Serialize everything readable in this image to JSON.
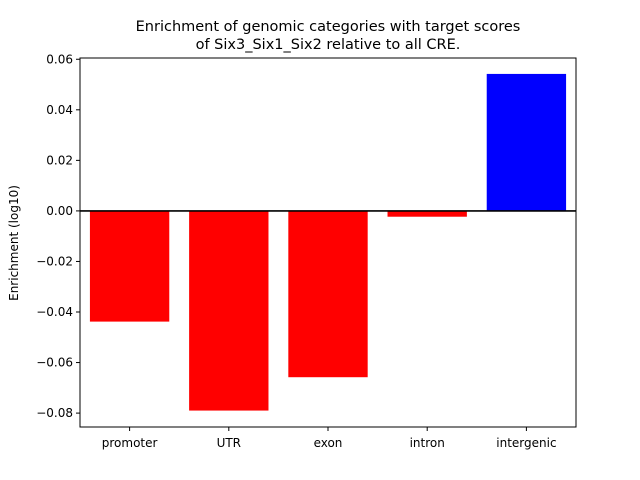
{
  "chart_data": {
    "type": "bar",
    "title_lines": [
      "Enrichment of genomic categories with target scores",
      "of Six3_Six1_Six2 relative to all CRE."
    ],
    "xlabel": "",
    "ylabel": "Enrichment (log10)",
    "categories": [
      "promoter",
      "UTR",
      "exon",
      "intron",
      "intergenic"
    ],
    "values": [
      -0.0438,
      -0.079,
      -0.0658,
      -0.0023,
      0.0542
    ],
    "colors": [
      "#ff0000",
      "#ff0000",
      "#ff0000",
      "#ff0000",
      "#0000ff"
    ],
    "ylim": [
      -0.0855,
      0.0605
    ],
    "yticks": [
      -0.08,
      -0.06,
      -0.04,
      -0.02,
      0.0,
      0.02,
      0.04,
      0.06
    ],
    "ytick_labels": [
      "−0.08",
      "−0.06",
      "−0.04",
      "−0.02",
      "0.00",
      "0.02",
      "0.04",
      "0.06"
    ],
    "grid": false,
    "zero_line": true
  }
}
